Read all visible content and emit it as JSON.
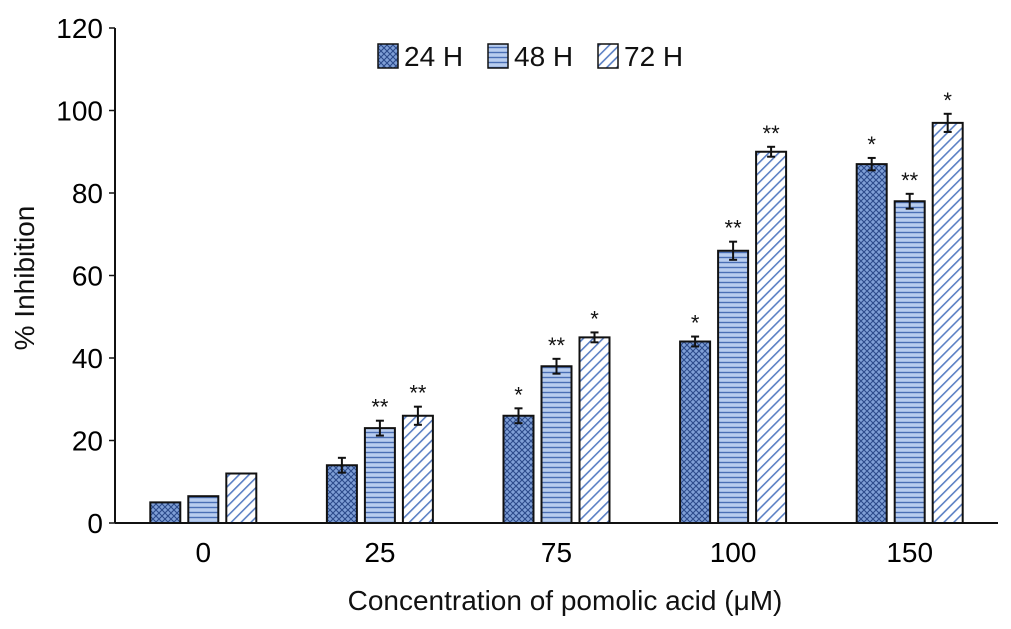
{
  "chart_data": {
    "type": "bar",
    "ylabel": "% Inhibition",
    "xlabel": "Concentration of pomolic acid (μM)",
    "ylim": [
      0,
      120
    ],
    "yticks": [
      0,
      20,
      40,
      60,
      80,
      100,
      120
    ],
    "categories": [
      "0",
      "25",
      "75",
      "100",
      "150"
    ],
    "legend_position": "top-center",
    "series": [
      {
        "name": "24 H",
        "pattern": "crosshatch",
        "color": "#7f9fd6",
        "values": [
          5,
          14,
          26,
          44,
          87
        ],
        "errors": [
          0,
          1.8,
          1.8,
          1.2,
          1.5
        ],
        "significance": [
          "",
          "",
          "*",
          "*",
          "*"
        ]
      },
      {
        "name": "48 H",
        "pattern": "horizontal-lines",
        "color": "#7f9fd6",
        "values": [
          6.5,
          23,
          38,
          66,
          78
        ],
        "errors": [
          0,
          1.8,
          1.8,
          2.2,
          1.8
        ],
        "significance": [
          "",
          "**",
          "**",
          "**",
          "**"
        ]
      },
      {
        "name": "72 H",
        "pattern": "diagonal-lines",
        "color": "#7f9fd6",
        "values": [
          12,
          26,
          45,
          90,
          97
        ],
        "errors": [
          0,
          2.2,
          1.2,
          1.2,
          2.2
        ],
        "significance": [
          "",
          "**",
          "*",
          "**",
          "*"
        ]
      }
    ]
  }
}
